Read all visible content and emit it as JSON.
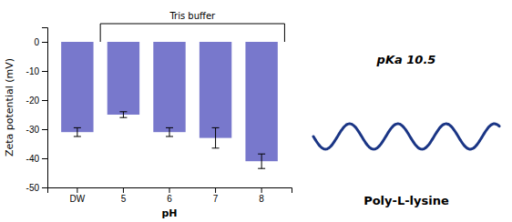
{
  "chart_data": {
    "type": "bar",
    "categories": [
      "DW",
      "5",
      "6",
      "7",
      "8"
    ],
    "values": [
      -31,
      -25,
      -31,
      -33,
      -41
    ],
    "errors": [
      1.5,
      1.0,
      1.5,
      3.5,
      2.5
    ],
    "color": "#7878cc",
    "xlabel": "pH",
    "ylabel": "Zeta potential (mV)",
    "ylim": [
      -50,
      5
    ],
    "yticks": [
      0,
      -10,
      -20,
      -30,
      -40,
      -50
    ],
    "annotations": [
      "Tris buffer",
      "pKa 10.5",
      "Poly-L-lysine"
    ]
  }
}
